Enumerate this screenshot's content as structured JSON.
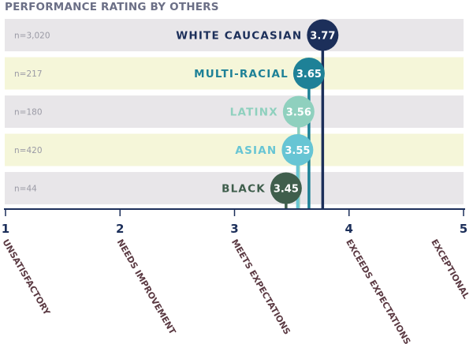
{
  "chart_data": {
    "type": "lollipop",
    "title": "PERFORMANCE RATING BY OTHERS",
    "xlim": [
      1,
      5
    ],
    "ticks": [
      {
        "value": 1,
        "tick_label": "1",
        "rating_label": "UNSATISFACTORY"
      },
      {
        "value": 2,
        "tick_label": "2",
        "rating_label": "NEEDS IMPROVEMENT"
      },
      {
        "value": 3,
        "tick_label": "3",
        "rating_label": "MEETS EXPECTATIONS"
      },
      {
        "value": 4,
        "tick_label": "4",
        "rating_label": "EXCEEDS EXPECTATIONS"
      },
      {
        "value": 5,
        "tick_label": "5",
        "rating_label": "EXCEPTIONAL"
      }
    ],
    "series": [
      {
        "name": "WHITE CAUCASIAN",
        "n_label": "n=3,020",
        "value": 3.77,
        "value_label": "3.77",
        "color": "#1c2f5a"
      },
      {
        "name": "MULTI-RACIAL",
        "n_label": "n=217",
        "value": 3.65,
        "value_label": "3.65",
        "color": "#1e8197"
      },
      {
        "name": "LATINX",
        "n_label": "n=180",
        "value": 3.56,
        "value_label": "3.56",
        "color": "#8fd0be"
      },
      {
        "name": "ASIAN",
        "n_label": "n=420",
        "value": 3.55,
        "value_label": "3.55",
        "color": "#67c5d4"
      },
      {
        "name": "BLACK",
        "n_label": "n=44",
        "value": 3.45,
        "value_label": "3.45",
        "color": "#3f5e4c"
      }
    ],
    "band_colors": [
      "#e8e6e9",
      "#f5f6d9"
    ],
    "axis_color": "#1c2f5a",
    "rating_label_color": "#5b3a43",
    "n_label_color": "#9a9aa5"
  }
}
